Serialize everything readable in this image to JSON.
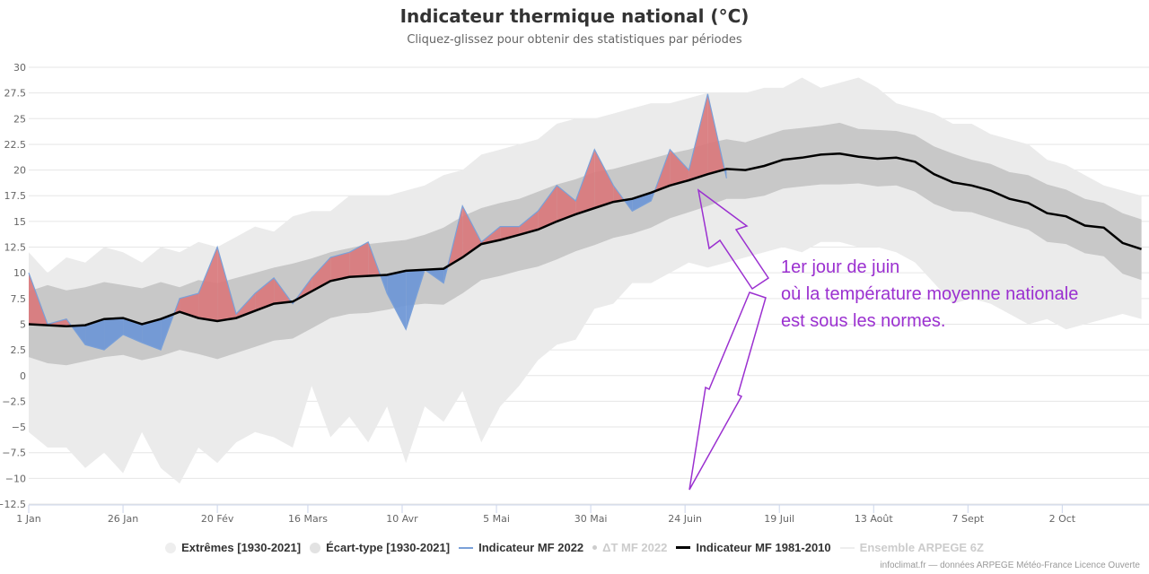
{
  "header": {
    "title": "Indicateur thermique national (°C)",
    "subtitle": "Cliquez-glissez pour obtenir des statistiques par périodes"
  },
  "annotation": {
    "lines": [
      "1er jour de juin",
      "où la température moyenne nationale",
      "est sous les normes."
    ],
    "color": "#9b30d0"
  },
  "legend": {
    "items": [
      {
        "label": "Extrêmes [1930-2021]",
        "symbol": "circle",
        "color": "#eeeeee",
        "visible": true
      },
      {
        "label": "Écart-type [1930-2021]",
        "symbol": "circle",
        "color": "#dddddd",
        "visible": true
      },
      {
        "label": "Indicateur MF 2022",
        "symbol": "line",
        "color": "#7aa0d8",
        "visible": true
      },
      {
        "label": "ΔT MF 2022",
        "symbol": "dot",
        "color": "#cccccc",
        "visible": false
      },
      {
        "label": "Indicateur MF 1981-2010",
        "symbol": "thick-line",
        "color": "#000000",
        "visible": true
      },
      {
        "label": "Ensemble ARPEGE 6Z",
        "symbol": "line",
        "color": "#eeeeee",
        "visible": false
      }
    ]
  },
  "credits": "infoclimat.fr — données ARPEGE Météo-France Licence Ouverte",
  "colors": {
    "extremes": "#ebebeb",
    "stddev": "#c8c8c8",
    "above": "#d9777a",
    "below": "#6a95d6",
    "normal": "#000000",
    "grid": "#e6e6e6"
  },
  "chart_data": {
    "type": "area",
    "title": "Indicateur thermique national (°C)",
    "subtitle": "Cliquez-glissez pour obtenir des statistiques par périodes",
    "xlabel": "",
    "ylabel": "",
    "ylim": [
      -12.5,
      30
    ],
    "yticks": [
      30,
      27.5,
      25,
      22.5,
      20,
      17.5,
      15,
      12.5,
      10,
      7.5,
      5,
      2.5,
      0,
      -2.5,
      -5,
      -7.5,
      -10,
      -12.5
    ],
    "ytick_labels": [
      "30",
      "27.5",
      "25",
      "22.5",
      "20",
      "17.5",
      "15",
      "12.5",
      "10",
      "7.5",
      "5",
      "2.5",
      "0",
      "−2.5",
      "−5",
      "−7.5",
      "−10",
      "−12.5"
    ],
    "xlim_days": [
      0,
      297
    ],
    "xticks": [
      {
        "day": 0,
        "label": "1 Jan"
      },
      {
        "day": 25,
        "label": "26 Jan"
      },
      {
        "day": 50,
        "label": "20 Fév"
      },
      {
        "day": 74,
        "label": "16 Mars"
      },
      {
        "day": 99,
        "label": "10 Avr"
      },
      {
        "day": 124,
        "label": "5 Mai"
      },
      {
        "day": 149,
        "label": "30 Mai"
      },
      {
        "day": 174,
        "label": "24 Juin"
      },
      {
        "day": 199,
        "label": "19 Juil"
      },
      {
        "day": 224,
        "label": "13 Août"
      },
      {
        "day": 249,
        "label": "7 Sept"
      },
      {
        "day": 274,
        "label": "2 Oct"
      }
    ],
    "grid": true,
    "legend_position": "bottom",
    "day_step": 5,
    "series": [
      {
        "name": "Indicateur MF 1981-2010",
        "values": [
          5.0,
          4.9,
          4.8,
          4.9,
          5.5,
          5.6,
          5.0,
          5.5,
          6.2,
          5.6,
          5.3,
          5.6,
          6.3,
          7.0,
          7.2,
          8.2,
          9.2,
          9.6,
          9.7,
          9.8,
          10.2,
          10.3,
          10.4,
          11.5,
          12.8,
          13.2,
          13.7,
          14.2,
          15.0,
          15.7,
          16.3,
          16.9,
          17.2,
          17.8,
          18.5,
          19.0,
          19.6,
          20.1,
          20.0,
          20.4,
          21.0,
          21.2,
          21.5,
          21.6,
          21.3,
          21.1,
          21.2,
          20.8,
          19.6,
          18.8,
          18.5,
          18.0,
          17.2,
          16.8,
          15.8,
          15.5,
          14.6,
          14.4,
          12.9,
          12.3
        ]
      },
      {
        "name": "Indicateur MF 2022",
        "values": [
          10.0,
          5.0,
          5.5,
          3.0,
          2.5,
          4.0,
          3.2,
          2.5,
          7.5,
          8.0,
          12.5,
          6.0,
          8.0,
          9.5,
          7.0,
          9.5,
          11.5,
          12.0,
          13.0,
          8.0,
          4.5,
          10.3,
          9.0,
          16.5,
          13.0,
          14.5,
          14.5,
          16.0,
          18.5,
          17.0,
          22.0,
          18.5,
          16.0,
          17.0,
          22.0,
          20.0,
          27.4,
          19.2
        ]
      },
      {
        "name": "Écart-type [1930-2021] (haut)",
        "values": [
          8.2,
          8.8,
          8.3,
          8.6,
          9.1,
          8.8,
          8.5,
          9.1,
          8.6,
          9.3,
          9.0,
          9.5,
          10.0,
          10.5,
          10.9,
          11.4,
          12.0,
          12.4,
          12.8,
          13.0,
          13.2,
          13.7,
          14.4,
          15.5,
          16.3,
          16.8,
          17.2,
          17.9,
          18.6,
          19.1,
          19.8,
          20.1,
          20.6,
          21.1,
          21.6,
          22.0,
          22.6,
          23.0,
          22.7,
          23.3,
          23.9,
          24.1,
          24.3,
          24.6,
          24.0,
          23.9,
          23.8,
          23.4,
          22.3,
          21.6,
          21.0,
          20.6,
          19.8,
          19.5,
          18.6,
          18.1,
          17.2,
          16.8,
          15.8,
          15.2
        ]
      },
      {
        "name": "Écart-type [1930-2021] (bas)",
        "values": [
          1.8,
          1.2,
          1.0,
          1.4,
          1.8,
          2.0,
          1.5,
          1.9,
          2.5,
          2.1,
          1.6,
          2.2,
          2.8,
          3.4,
          3.6,
          4.6,
          5.6,
          6.0,
          6.1,
          6.4,
          6.8,
          7.0,
          6.9,
          8.0,
          9.3,
          9.7,
          10.2,
          10.6,
          11.3,
          12.1,
          12.7,
          13.4,
          13.8,
          14.4,
          15.3,
          15.9,
          16.5,
          17.2,
          17.2,
          17.5,
          18.2,
          18.4,
          18.6,
          18.6,
          18.7,
          18.4,
          18.5,
          17.9,
          16.7,
          16.0,
          15.9,
          15.3,
          14.7,
          14.2,
          13.0,
          12.8,
          11.9,
          11.6,
          9.9,
          9.3
        ]
      },
      {
        "name": "Extrêmes [1930-2021] (haut)",
        "values": [
          12.0,
          10.0,
          11.5,
          11.0,
          12.5,
          12.0,
          11.0,
          12.5,
          12.0,
          13.0,
          12.5,
          13.5,
          14.5,
          14.0,
          15.5,
          16.0,
          16.0,
          17.5,
          17.5,
          17.5,
          18.0,
          18.5,
          19.5,
          20.0,
          21.5,
          22.0,
          22.5,
          23.0,
          24.5,
          25.0,
          25.0,
          25.5,
          26.0,
          26.5,
          26.5,
          27.0,
          27.5,
          27.5,
          27.5,
          28.0,
          28.0,
          29.0,
          28.0,
          28.5,
          29.0,
          28.0,
          26.5,
          26.0,
          25.5,
          24.5,
          24.5,
          23.5,
          23.0,
          22.5,
          21.0,
          20.5,
          19.5,
          18.5,
          18.0,
          17.5
        ]
      },
      {
        "name": "Extrêmes [1930-2021] (bas)",
        "values": [
          -5.5,
          -7.0,
          -7.0,
          -9.0,
          -7.5,
          -9.5,
          -5.5,
          -9.0,
          -10.5,
          -7.0,
          -8.5,
          -6.5,
          -5.5,
          -6.0,
          -7.0,
          -1.0,
          -6.0,
          -4.0,
          -6.5,
          -3.0,
          -8.5,
          -3.0,
          -4.5,
          -1.5,
          -6.5,
          -3.0,
          -1.0,
          1.5,
          3.0,
          3.5,
          6.5,
          7.0,
          9.0,
          9.0,
          10.0,
          11.0,
          10.5,
          11.0,
          11.5,
          12.0,
          12.5,
          12.0,
          13.0,
          13.0,
          12.5,
          12.5,
          12.0,
          11.0,
          9.0,
          7.0,
          7.5,
          7.0,
          6.0,
          5.0,
          5.5,
          4.5,
          5.0,
          5.5,
          6.0,
          5.5
        ]
      }
    ]
  }
}
